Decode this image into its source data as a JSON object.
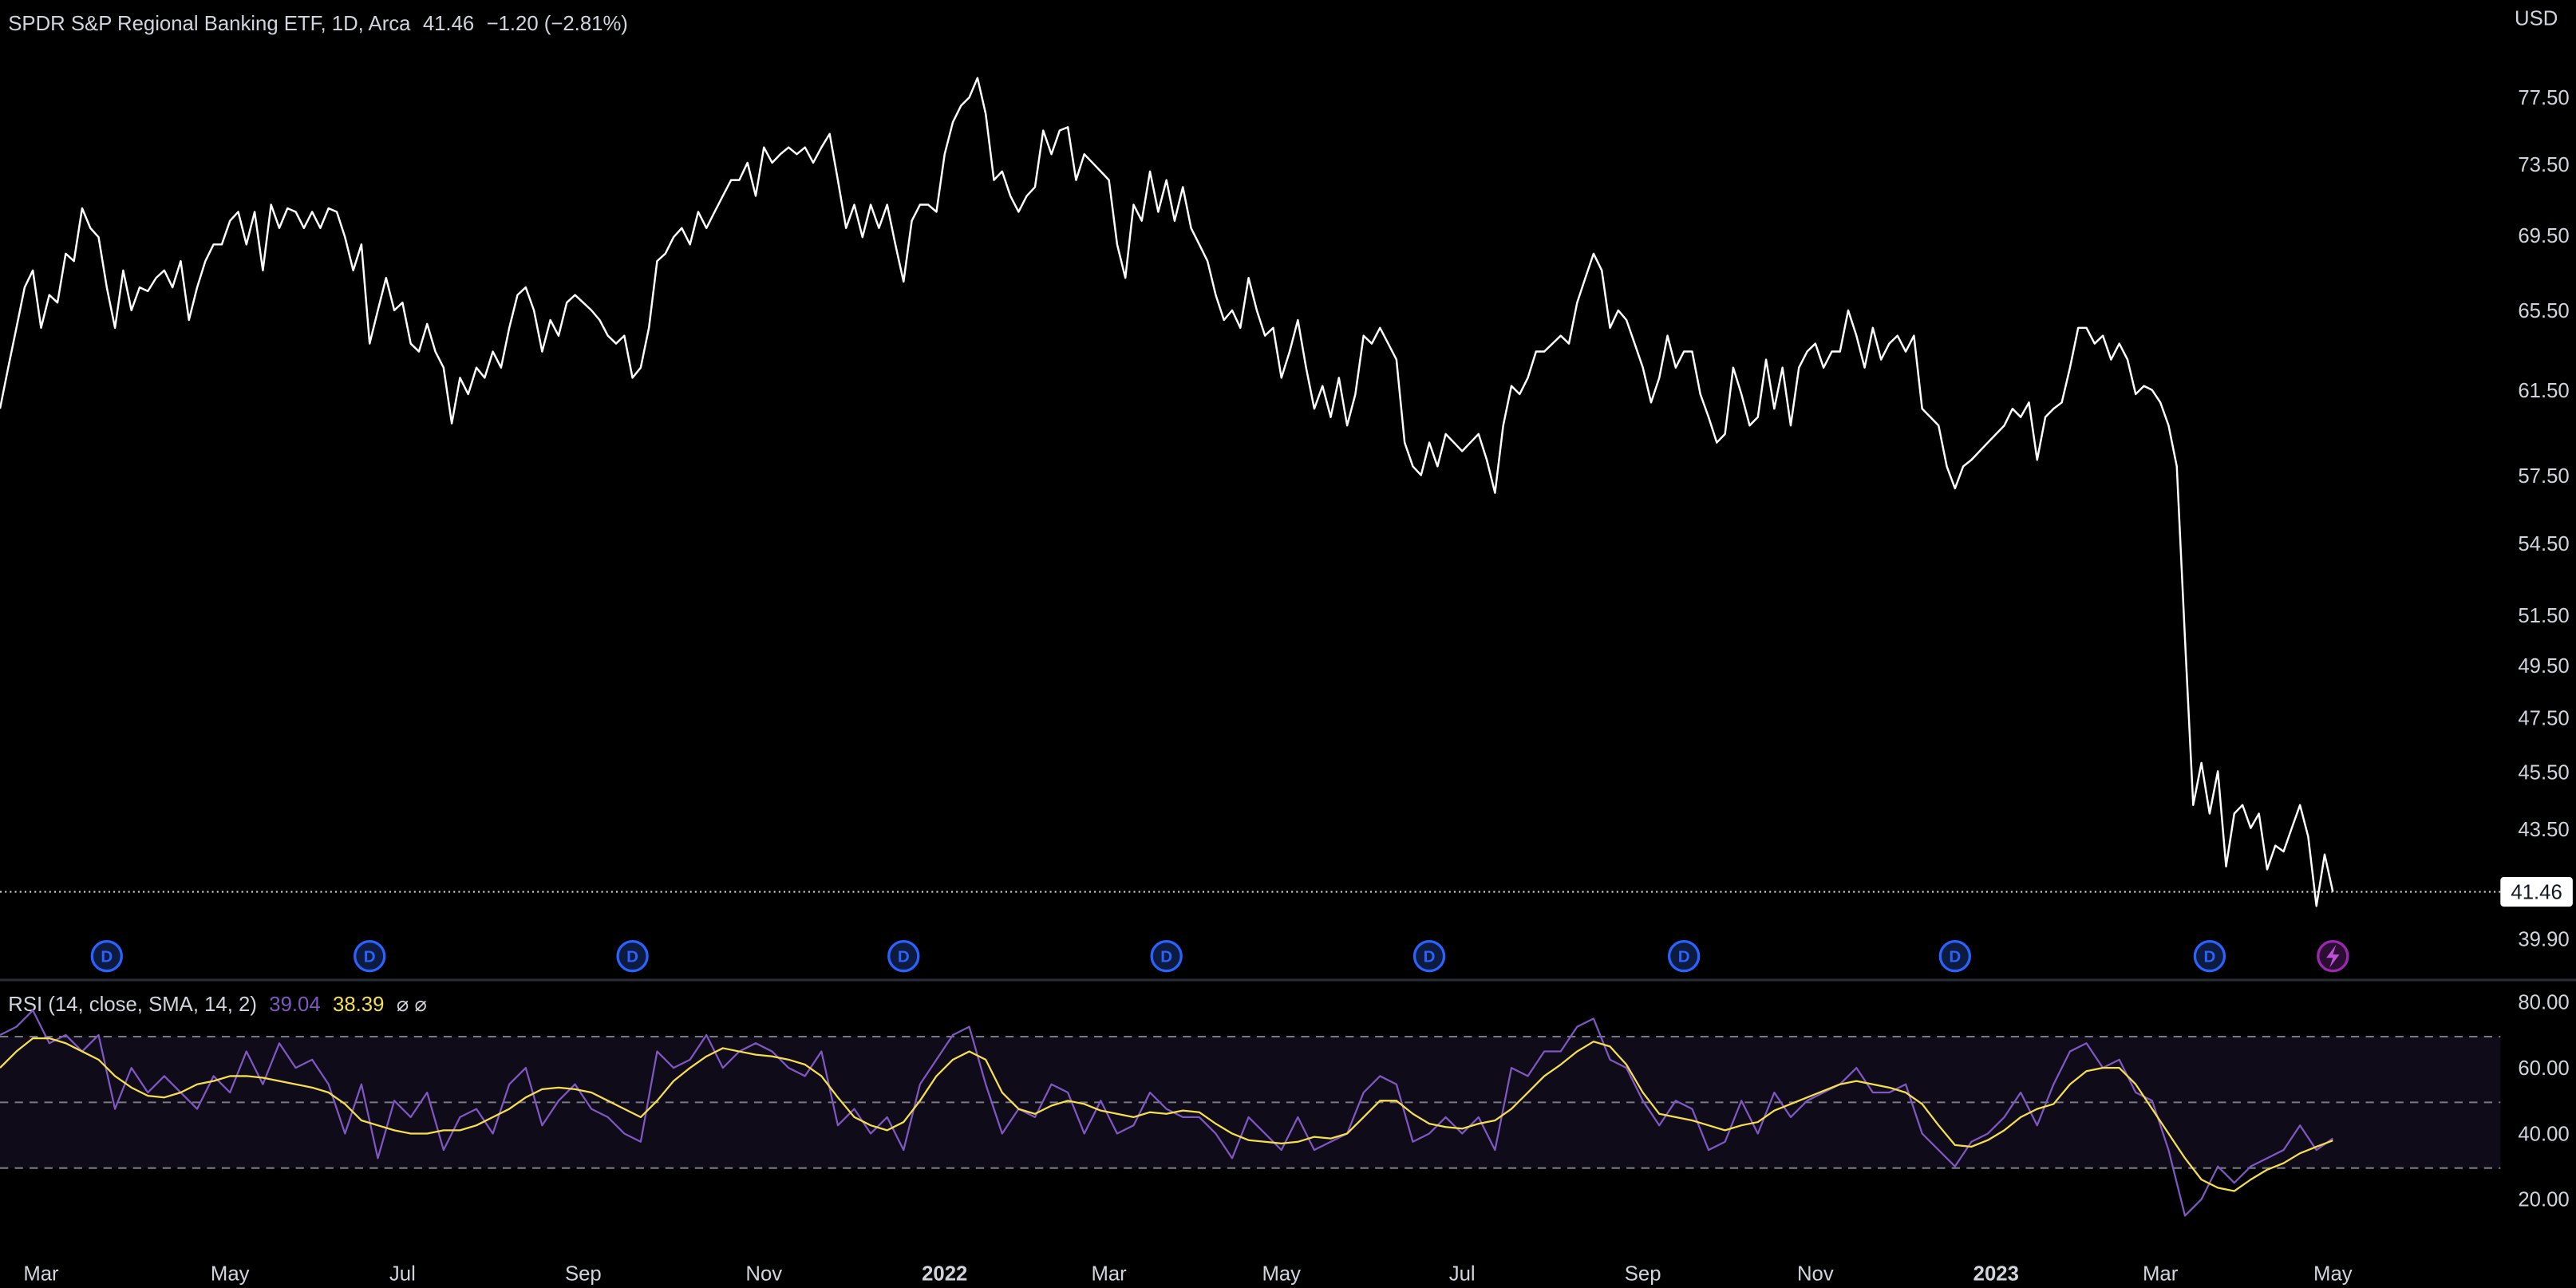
{
  "chart_data": [
    {
      "type": "line",
      "title": "SPDR S&P Regional Banking ETF, 1D, Arca",
      "change": "−1.20 (−2.81%)",
      "currency": "USD",
      "categories": [
        null,
        null,
        null,
        null,
        null,
        "Mar",
        null,
        null,
        null,
        null,
        null,
        null,
        null,
        null,
        null,
        null,
        null,
        null,
        null,
        null,
        null,
        null,
        null,
        null,
        null,
        null,
        null,
        null,
        "May",
        null,
        null,
        null,
        null,
        null,
        null,
        null,
        null,
        null,
        null,
        null,
        null,
        null,
        null,
        null,
        null,
        null,
        null,
        null,
        null,
        "Jul",
        null,
        null,
        null,
        null,
        null,
        null,
        null,
        null,
        null,
        null,
        null,
        null,
        null,
        null,
        null,
        null,
        null,
        null,
        null,
        null,
        null,
        "Sep",
        null,
        null,
        null,
        null,
        null,
        null,
        null,
        null,
        null,
        null,
        null,
        null,
        null,
        null,
        null,
        null,
        null,
        null,
        null,
        null,
        null,
        "Nov",
        null,
        null,
        null,
        null,
        null,
        null,
        null,
        null,
        null,
        null,
        null,
        null,
        null,
        null,
        null,
        null,
        null,
        null,
        null,
        null,
        null,
        "2022",
        null,
        null,
        null,
        null,
        null,
        null,
        null,
        null,
        null,
        null,
        null,
        null,
        null,
        null,
        null,
        null,
        null,
        null,
        null,
        "Mar",
        null,
        null,
        null,
        null,
        null,
        null,
        null,
        null,
        null,
        null,
        null,
        null,
        null,
        null,
        null,
        null,
        null,
        null,
        null,
        null,
        "May",
        null,
        null,
        null,
        null,
        null,
        null,
        null,
        null,
        null,
        null,
        null,
        null,
        null,
        null,
        null,
        null,
        null,
        null,
        null,
        null,
        null,
        "Jul",
        null,
        null,
        null,
        null,
        null,
        null,
        null,
        null,
        null,
        null,
        null,
        null,
        null,
        null,
        null,
        null,
        null,
        null,
        null,
        null,
        null,
        "Sep",
        null,
        null,
        null,
        null,
        null,
        null,
        null,
        null,
        null,
        null,
        null,
        null,
        null,
        null,
        null,
        null,
        null,
        null,
        null,
        null,
        "Nov",
        null,
        null,
        null,
        null,
        null,
        null,
        null,
        null,
        null,
        null,
        null,
        null,
        null,
        null,
        null,
        null,
        null,
        null,
        null,
        null,
        null,
        "2023",
        null,
        null,
        null,
        null,
        null,
        null,
        null,
        null,
        null,
        null,
        null,
        null,
        null,
        null,
        null,
        null,
        null,
        null,
        null,
        "Mar",
        null,
        null,
        null,
        null,
        null,
        null,
        null,
        null,
        null,
        null,
        null,
        null,
        null,
        null,
        null,
        null,
        null,
        null,
        null,
        null,
        "May"
      ],
      "values": [
        60.7,
        62.7,
        64.7,
        66.8,
        67.7,
        64.7,
        66.4,
        66.0,
        68.6,
        68.2,
        71.1,
        70.0,
        69.5,
        66.8,
        64.7,
        67.7,
        65.6,
        66.8,
        66.6,
        67.3,
        67.7,
        66.8,
        68.2,
        65.1,
        66.8,
        68.2,
        69.1,
        69.1,
        70.4,
        70.9,
        69.1,
        70.9,
        67.7,
        71.3,
        70.0,
        71.1,
        70.9,
        70.0,
        70.9,
        70.0,
        71.1,
        70.9,
        69.5,
        67.7,
        69.1,
        63.9,
        65.6,
        67.3,
        65.6,
        66.0,
        63.9,
        63.5,
        64.9,
        63.5,
        62.7,
        60.0,
        62.2,
        61.4,
        62.7,
        62.2,
        63.5,
        62.7,
        64.7,
        66.4,
        66.8,
        65.6,
        63.5,
        65.1,
        64.3,
        66.0,
        66.4,
        66.0,
        65.6,
        65.1,
        64.3,
        63.9,
        64.3,
        62.2,
        62.7,
        64.7,
        68.2,
        68.6,
        69.5,
        70.0,
        69.1,
        70.9,
        70.0,
        70.9,
        71.8,
        72.7,
        72.7,
        73.7,
        71.8,
        74.6,
        73.7,
        74.2,
        74.6,
        74.2,
        74.6,
        73.7,
        74.6,
        75.4,
        72.7,
        70.0,
        71.3,
        69.5,
        71.3,
        70.0,
        71.3,
        69.1,
        67.1,
        70.4,
        71.3,
        71.3,
        70.9,
        74.2,
        76.1,
        77.1,
        77.6,
        78.8,
        76.6,
        72.7,
        73.2,
        71.8,
        70.9,
        71.8,
        72.3,
        75.6,
        74.2,
        75.6,
        75.8,
        72.7,
        74.2,
        73.7,
        73.2,
        72.7,
        69.1,
        67.3,
        71.3,
        70.4,
        73.2,
        70.9,
        72.7,
        70.4,
        72.3,
        70.0,
        69.1,
        68.2,
        66.4,
        65.1,
        65.6,
        64.7,
        67.3,
        65.6,
        64.3,
        64.7,
        62.2,
        63.5,
        65.1,
        62.7,
        60.7,
        61.8,
        60.3,
        62.2,
        59.9,
        61.4,
        64.3,
        63.9,
        64.7,
        63.9,
        63.1,
        59.1,
        58.0,
        57.6,
        59.1,
        58.0,
        59.5,
        59.1,
        58.7,
        59.1,
        59.5,
        58.3,
        56.8,
        59.9,
        61.8,
        61.4,
        62.2,
        63.5,
        63.5,
        63.9,
        64.3,
        63.9,
        66.0,
        67.3,
        68.6,
        67.7,
        64.7,
        65.6,
        65.1,
        63.9,
        62.7,
        61.0,
        62.2,
        64.3,
        62.7,
        63.5,
        63.5,
        61.4,
        60.3,
        59.1,
        59.5,
        62.7,
        61.4,
        59.9,
        60.3,
        63.1,
        60.7,
        62.7,
        59.9,
        62.7,
        63.5,
        63.9,
        62.7,
        63.5,
        63.5,
        65.6,
        64.3,
        62.7,
        64.7,
        63.1,
        63.9,
        64.3,
        63.5,
        64.3,
        60.7,
        60.3,
        59.9,
        58.0,
        57.0,
        58.0,
        58.3,
        58.7,
        59.1,
        59.5,
        59.9,
        60.7,
        60.3,
        61.0,
        58.3,
        60.3,
        60.7,
        61.0,
        62.7,
        64.7,
        64.7,
        63.9,
        64.3,
        63.1,
        63.9,
        63.1,
        61.4,
        61.8,
        61.6,
        61.0,
        59.9,
        58.0,
        50.6,
        44.4,
        45.9,
        44.1,
        45.6,
        42.3,
        44.1,
        44.4,
        43.6,
        44.1,
        42.2,
        43.0,
        42.8,
        43.6,
        44.4,
        43.3,
        41.0,
        42.7,
        41.46
      ],
      "color": "#ffffff",
      "log_scale": true,
      "ylim": [
        38.7,
        83.8
      ],
      "yticks": [
        {
          "value": 77.5,
          "label": "77.50"
        },
        {
          "value": 73.5,
          "label": "73.50"
        },
        {
          "value": 69.5,
          "label": "69.50"
        },
        {
          "value": 65.5,
          "label": "65.50"
        },
        {
          "value": 61.5,
          "label": "61.50"
        },
        {
          "value": 57.5,
          "label": "57.50"
        },
        {
          "value": 54.5,
          "label": "54.50"
        },
        {
          "value": 51.5,
          "label": "51.50"
        },
        {
          "value": 49.5,
          "label": "49.50"
        },
        {
          "value": 47.5,
          "label": "47.50"
        },
        {
          "value": 45.5,
          "label": "45.50"
        },
        {
          "value": 43.5,
          "label": "43.50"
        },
        {
          "value": 39.9,
          "label": "39.90"
        }
      ],
      "grid": false,
      "last_price_line": true,
      "dividends": {
        "label": "D",
        "color": "#2962ff",
        "index": [
          13,
          45,
          77,
          110,
          142,
          174,
          205,
          238,
          269
        ]
      }
    },
    {
      "type": "line",
      "title": "RSI (14, close, SMA, 14, 2)",
      "flags": "⌀ ⌀",
      "categories": [
        null,
        null,
        null,
        null,
        null,
        null,
        null,
        null,
        null,
        null,
        null,
        null,
        null,
        null,
        null,
        null,
        null,
        null,
        null,
        null,
        null,
        null,
        null,
        null,
        null,
        null,
        null,
        null,
        null,
        null,
        null,
        null,
        null,
        null,
        null,
        null,
        null,
        null,
        null,
        null,
        null,
        null,
        null,
        null,
        null,
        null,
        null,
        null,
        null,
        null,
        null,
        null,
        null,
        null,
        null,
        null,
        null,
        null,
        null,
        null,
        null,
        null,
        null,
        null,
        null,
        null,
        null,
        null,
        null,
        null,
        null,
        null,
        null,
        null,
        null,
        null,
        null,
        null,
        null,
        null,
        null,
        null,
        null,
        null,
        null,
        null,
        null,
        null,
        null,
        null,
        null,
        null,
        null,
        null,
        null,
        null,
        null,
        null,
        null,
        null,
        null,
        null,
        null,
        null,
        null,
        null,
        null,
        null,
        null,
        null,
        null,
        null,
        null,
        null,
        null,
        null,
        null,
        null,
        null,
        null,
        null,
        null,
        null,
        null,
        null,
        null,
        null,
        null,
        null,
        null,
        null,
        null,
        null,
        null,
        null,
        null,
        null,
        null,
        null,
        null,
        null,
        null,
        null
      ],
      "series": [
        {
          "color": "#7e57c2",
          "values": [
            70.5,
            73,
            78,
            68,
            70.5,
            65.5,
            70.5,
            48,
            60.5,
            53,
            58,
            53,
            48,
            58,
            53,
            65.5,
            55.5,
            68,
            60.5,
            63,
            55.5,
            40.5,
            55.5,
            33,
            50.5,
            45.5,
            53,
            35.5,
            45.5,
            48,
            40.5,
            55.5,
            60.5,
            43,
            50.5,
            55.5,
            48,
            45.5,
            40.5,
            38,
            65.5,
            60.5,
            63,
            70.5,
            60.5,
            65.5,
            68,
            65.5,
            60.5,
            58,
            65.5,
            43,
            48,
            40.5,
            45.5,
            35.5,
            55.5,
            63,
            70.5,
            73,
            55.5,
            40.5,
            48,
            45.5,
            55.5,
            53,
            40.5,
            50.5,
            40.5,
            43,
            53,
            48,
            45.5,
            45.5,
            40.5,
            33,
            45.5,
            40.5,
            35.5,
            45.5,
            35.5,
            38,
            40.5,
            53,
            58,
            55.5,
            38,
            40.5,
            45.5,
            40.5,
            45.5,
            35.5,
            60.5,
            58,
            65.5,
            65.5,
            73,
            75.5,
            63,
            60.5,
            50.5,
            43,
            50.5,
            48,
            35.5,
            38,
            50.5,
            40.5,
            53,
            45.5,
            50.5,
            53,
            55.5,
            60.5,
            53,
            53,
            55.5,
            40.5,
            35.5,
            30.5,
            38,
            40.5,
            45.5,
            53,
            43,
            55.5,
            65.5,
            68,
            60.5,
            63,
            53,
            50.5,
            35.5,
            15.5,
            20.5,
            30.5,
            25.5,
            30.5,
            33,
            35.5,
            43,
            35.5,
            39.04
          ]
        },
        {
          "color": "#f5e04a",
          "values": [
            60.5,
            65.5,
            69.5,
            69.5,
            68,
            65.5,
            63,
            58,
            54.5,
            52,
            51.5,
            53,
            55.5,
            56.5,
            58,
            58,
            57.5,
            56.5,
            55.5,
            54.5,
            53,
            49.5,
            44.5,
            43,
            41.5,
            40.5,
            40.5,
            41.5,
            41.5,
            43,
            45.5,
            48,
            51.5,
            54,
            54.5,
            54,
            53,
            50.5,
            48,
            45.5,
            50.5,
            56.5,
            60.5,
            64,
            66.5,
            65.5,
            64.5,
            64,
            63,
            61.5,
            58,
            51.5,
            45.5,
            43,
            41.5,
            44,
            50.5,
            58,
            63,
            65.5,
            63,
            53,
            48,
            46.5,
            49,
            50.5,
            49.5,
            47.5,
            46.5,
            45.5,
            47,
            46.5,
            47.5,
            47,
            43.5,
            40.5,
            38.5,
            38,
            37.5,
            38,
            39.5,
            39,
            40.5,
            45.5,
            50.5,
            50.5,
            46.5,
            43.5,
            42.5,
            42,
            43.5,
            44.5,
            48,
            53,
            58,
            61.5,
            65.5,
            68.5,
            67,
            61.5,
            53,
            46.5,
            45.5,
            44.5,
            43,
            41.5,
            43,
            44,
            47.5,
            49.5,
            51.5,
            53.5,
            55.5,
            56.5,
            55.5,
            54.5,
            53,
            49.5,
            43,
            37,
            36.5,
            38.5,
            41.5,
            45.5,
            48,
            49.5,
            55.5,
            59.5,
            60.5,
            60.5,
            55.5,
            48,
            40.5,
            33,
            26.5,
            24,
            23,
            26.5,
            29.5,
            31.5,
            34.5,
            36.5,
            38.39
          ]
        }
      ],
      "ylim": [
        5.5,
        86.5
      ],
      "yticks": [
        {
          "value": 80,
          "label": "80.00"
        },
        {
          "value": 60,
          "label": "60.00"
        },
        {
          "value": 40,
          "label": "40.00"
        },
        {
          "value": 20,
          "label": "20.00"
        }
      ],
      "hlines": [
        70,
        50,
        30
      ],
      "band_color": "#7e57c2"
    }
  ]
}
